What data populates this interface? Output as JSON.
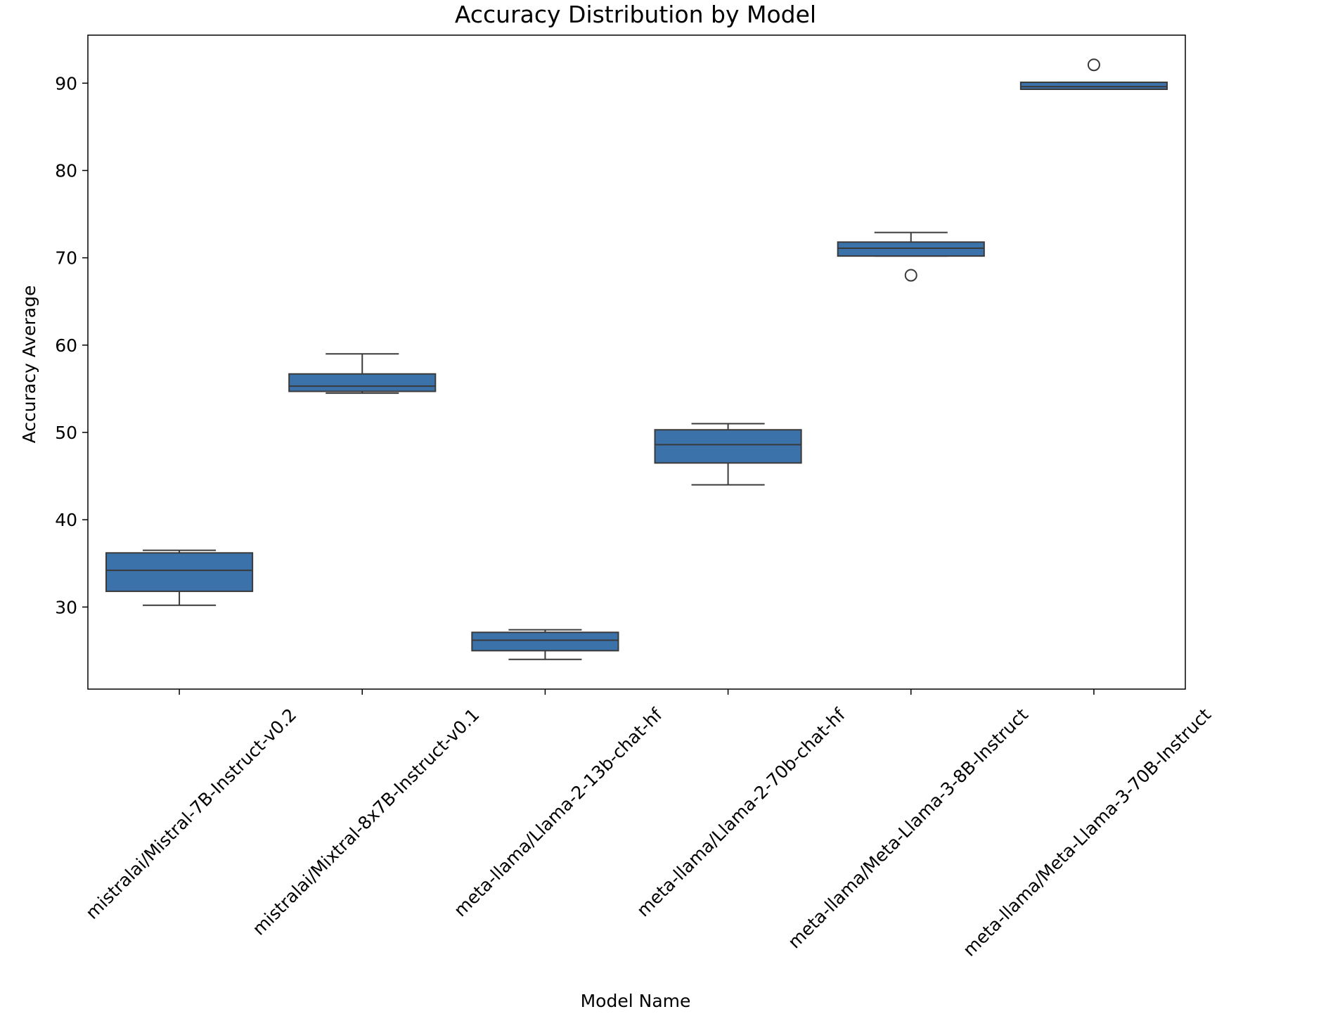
{
  "chart_data": {
    "type": "box",
    "title": "Accuracy Distribution by Model",
    "xlabel": "Model Name",
    "ylabel": "Accuracy Average",
    "ylim": [
      20.6,
      95.5
    ],
    "yticks": [
      30,
      40,
      50,
      60,
      70,
      80,
      90
    ],
    "grid": false,
    "box_color": "#3b72aa",
    "line_color": "#3a3a3a",
    "categories": [
      "mistralai/Mistral-7B-Instruct-v0.2",
      "mistralai/Mixtral-8x7B-Instruct-v0.1",
      "meta-llama/Llama-2-13b-chat-hf",
      "meta-llama/Llama-2-70b-chat-hf",
      "meta-llama/Meta-Llama-3-8B-Instruct",
      "meta-llama/Meta-Llama-3-70B-Instruct"
    ],
    "boxes": [
      {
        "whisker_low": 30.2,
        "q1": 31.8,
        "median": 34.2,
        "q3": 36.2,
        "whisker_high": 36.5,
        "outliers": []
      },
      {
        "whisker_low": 54.5,
        "q1": 54.7,
        "median": 55.3,
        "q3": 56.7,
        "whisker_high": 59.0,
        "outliers": []
      },
      {
        "whisker_low": 24.0,
        "q1": 25.0,
        "median": 26.2,
        "q3": 27.1,
        "whisker_high": 27.4,
        "outliers": []
      },
      {
        "whisker_low": 44.0,
        "q1": 46.5,
        "median": 48.6,
        "q3": 50.3,
        "whisker_high": 51.0,
        "outliers": []
      },
      {
        "whisker_low": 70.2,
        "q1": 70.2,
        "median": 71.1,
        "q3": 71.8,
        "whisker_high": 72.9,
        "outliers": [
          68.0
        ]
      },
      {
        "whisker_low": 89.3,
        "q1": 89.3,
        "median": 89.6,
        "q3": 90.1,
        "whisker_high": 90.1,
        "outliers": [
          92.1
        ]
      }
    ]
  }
}
